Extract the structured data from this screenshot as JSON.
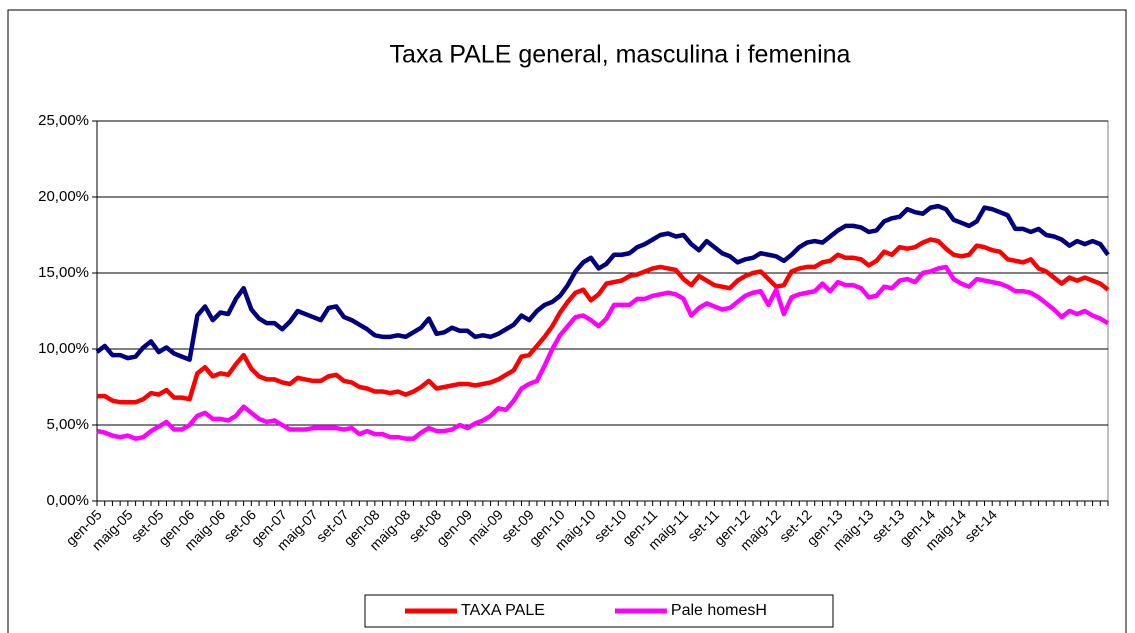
{
  "chart_data": {
    "type": "line",
    "title": "Taxa PALE general, masculina i femenina",
    "categories": [
      "gen-05",
      null,
      null,
      null,
      "maig-05",
      null,
      null,
      null,
      "set-05",
      null,
      null,
      null,
      "gen-06",
      null,
      null,
      null,
      "maig-06",
      null,
      null,
      null,
      "set-06",
      null,
      null,
      null,
      "gen-07",
      null,
      null,
      null,
      "maig-07",
      null,
      null,
      null,
      "set-07",
      null,
      null,
      null,
      "gen-08",
      null,
      null,
      null,
      "maig-08",
      null,
      null,
      null,
      "set-08",
      null,
      null,
      null,
      "gen-09",
      null,
      null,
      null,
      "mai-09",
      null,
      null,
      null,
      "set-09",
      null,
      null,
      null,
      "gen-10",
      null,
      null,
      null,
      "maig-10",
      null,
      null,
      null,
      "set-10",
      null,
      null,
      null,
      "gen-11",
      null,
      null,
      null,
      "maig-11",
      null,
      null,
      null,
      "set-11",
      null,
      null,
      null,
      "gen-12",
      null,
      null,
      null,
      "maig-12",
      null,
      null,
      null,
      "set-12",
      null,
      null,
      null,
      "gen-13",
      null,
      null,
      null,
      "maig-13",
      null,
      null,
      null,
      "set-13",
      null,
      null,
      null,
      "gen-14",
      null,
      null,
      null,
      "maig-14",
      null,
      null,
      null,
      "set-14",
      null,
      null,
      null,
      null,
      null,
      null,
      null,
      null,
      null,
      null,
      null,
      null,
      null,
      null,
      null
    ],
    "series": [
      {
        "color": "#000080",
        "values": [
          9.8,
          10.2,
          9.6,
          9.6,
          9.4,
          9.5,
          10.1,
          10.5,
          9.8,
          10.1,
          9.7,
          9.5,
          9.3,
          12.2,
          12.8,
          11.9,
          12.4,
          12.3,
          13.3,
          14.0,
          12.6,
          12.0,
          11.7,
          11.7,
          11.3,
          11.8,
          12.5,
          12.3,
          12.1,
          11.9,
          12.7,
          12.8,
          12.1,
          11.9,
          11.6,
          11.3,
          10.9,
          10.8,
          10.8,
          10.9,
          10.8,
          11.1,
          11.4,
          12.0,
          11.0,
          11.1,
          11.4,
          11.2,
          11.2,
          10.8,
          10.9,
          10.8,
          11.0,
          11.3,
          11.6,
          12.2,
          11.9,
          12.5,
          12.9,
          13.1,
          13.5,
          14.2,
          15.1,
          15.7,
          16.0,
          15.3,
          15.6,
          16.2,
          16.2,
          16.3,
          16.7,
          16.9,
          17.2,
          17.5,
          17.6,
          17.4,
          17.5,
          16.9,
          16.5,
          17.1,
          16.7,
          16.3,
          16.1,
          15.7,
          15.9,
          16.0,
          16.3,
          16.2,
          16.1,
          15.8,
          16.2,
          16.7,
          17.0,
          17.1,
          17.0,
          17.4,
          17.8,
          18.1,
          18.1,
          18.0,
          17.7,
          17.8,
          18.4,
          18.6,
          18.7,
          19.2,
          19.0,
          18.9,
          19.3,
          19.4,
          19.2,
          18.5,
          18.3,
          18.1,
          18.4,
          19.3,
          19.2,
          19.0,
          18.8,
          17.9,
          17.9,
          17.7,
          17.9,
          17.5,
          17.4,
          17.2,
          16.8,
          17.1,
          16.9,
          17.1,
          16.9,
          16.2
        ]
      },
      {
        "name": "TAXA PALE",
        "color": "#ff0000",
        "values": [
          6.9,
          6.9,
          6.6,
          6.5,
          6.5,
          6.5,
          6.7,
          7.1,
          7.0,
          7.3,
          6.8,
          6.8,
          6.7,
          8.4,
          8.8,
          8.2,
          8.4,
          8.3,
          9.0,
          9.6,
          8.7,
          8.2,
          8.0,
          8.0,
          7.8,
          7.7,
          8.1,
          8.0,
          7.9,
          7.9,
          8.2,
          8.3,
          7.9,
          7.8,
          7.5,
          7.4,
          7.2,
          7.2,
          7.1,
          7.2,
          7.0,
          7.2,
          7.5,
          7.9,
          7.4,
          7.5,
          7.6,
          7.7,
          7.7,
          7.6,
          7.7,
          7.8,
          8.0,
          8.3,
          8.6,
          9.5,
          9.6,
          10.2,
          10.8,
          11.5,
          12.4,
          13.1,
          13.7,
          13.9,
          13.2,
          13.6,
          14.3,
          14.4,
          14.5,
          14.8,
          14.9,
          15.1,
          15.3,
          15.4,
          15.3,
          15.2,
          14.6,
          14.2,
          14.8,
          14.5,
          14.2,
          14.1,
          14.0,
          14.5,
          14.8,
          15.0,
          15.1,
          14.6,
          14.1,
          14.2,
          15.1,
          15.3,
          15.4,
          15.4,
          15.7,
          15.8,
          16.2,
          16.0,
          16.0,
          15.9,
          15.5,
          15.8,
          16.4,
          16.2,
          16.7,
          16.6,
          16.7,
          17.0,
          17.2,
          17.1,
          16.6,
          16.2,
          16.1,
          16.2,
          16.8,
          16.7,
          16.5,
          16.4,
          15.9,
          15.8,
          15.7,
          15.9,
          15.3,
          15.1,
          14.7,
          14.3,
          14.7,
          14.5,
          14.7,
          14.5,
          14.3,
          13.9
        ]
      },
      {
        "name": "Pale homesH",
        "color": "#ff00ff",
        "values": [
          4.6,
          4.5,
          4.3,
          4.2,
          4.3,
          4.1,
          4.2,
          4.6,
          4.9,
          5.2,
          4.7,
          4.7,
          5.0,
          5.6,
          5.8,
          5.4,
          5.4,
          5.3,
          5.6,
          6.2,
          5.8,
          5.4,
          5.2,
          5.3,
          5.0,
          4.7,
          4.7,
          4.7,
          4.8,
          4.8,
          4.8,
          4.8,
          4.7,
          4.8,
          4.4,
          4.6,
          4.4,
          4.4,
          4.2,
          4.2,
          4.1,
          4.1,
          4.5,
          4.8,
          4.6,
          4.6,
          4.7,
          5.0,
          4.8,
          5.1,
          5.3,
          5.6,
          6.1,
          6.0,
          6.6,
          7.4,
          7.7,
          7.9,
          8.9,
          10.0,
          10.9,
          11.5,
          12.1,
          12.2,
          11.9,
          11.5,
          12.0,
          12.9,
          12.9,
          12.9,
          13.3,
          13.3,
          13.5,
          13.6,
          13.7,
          13.6,
          13.3,
          12.2,
          12.7,
          13.0,
          12.8,
          12.6,
          12.7,
          13.1,
          13.5,
          13.7,
          13.8,
          12.9,
          13.9,
          12.3,
          13.4,
          13.6,
          13.7,
          13.8,
          14.3,
          13.8,
          14.4,
          14.2,
          14.2,
          14.0,
          13.4,
          13.5,
          14.1,
          14.0,
          14.5,
          14.6,
          14.4,
          15.0,
          15.1,
          15.3,
          15.4,
          14.6,
          14.3,
          14.1,
          14.6,
          14.5,
          14.4,
          14.3,
          14.1,
          13.8,
          13.8,
          13.7,
          13.4,
          13.0,
          12.6,
          12.1,
          12.5,
          12.3,
          12.5,
          12.2,
          12.0,
          11.7
        ]
      }
    ],
    "ylim": [
      0,
      25
    ],
    "yticks": [
      {
        "value": 0,
        "label": "0,00%"
      },
      {
        "value": 5,
        "label": "5,00%"
      },
      {
        "value": 10,
        "label": "10,00%"
      },
      {
        "value": 15,
        "label": "15,00%"
      },
      {
        "value": 20,
        "label": "20,00%"
      },
      {
        "value": 25,
        "label": "25,00%"
      }
    ],
    "grid": true,
    "legend": "bottom"
  }
}
